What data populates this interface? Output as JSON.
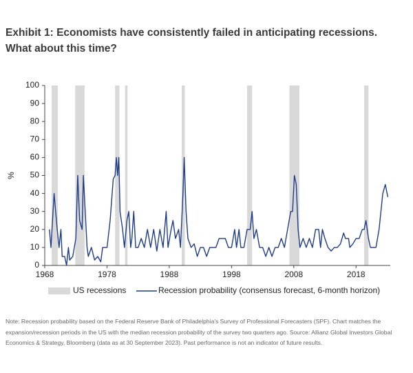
{
  "chart_data": {
    "type": "line",
    "title": "Exhibit 1: Economists have consistently failed in anticipating recessions. What about this time?",
    "y_label": "%",
    "xlim": [
      1968,
      2023.5
    ],
    "ylim": [
      0,
      100
    ],
    "xticks": [
      1968,
      1978,
      1988,
      1998,
      2008,
      2018
    ],
    "yticks": [
      0,
      10,
      20,
      30,
      40,
      50,
      60,
      70,
      80,
      90,
      100
    ],
    "recessions": {
      "name": "US recessions",
      "color": "#d9d9d9",
      "periods": [
        [
          1969.1,
          1970.1
        ],
        [
          1972.9,
          1974.4
        ],
        [
          1979.3,
          1980.0
        ],
        [
          1980.9,
          1981.3
        ],
        [
          1990.0,
          1990.5
        ],
        [
          2000.5,
          2001.3
        ],
        [
          2007.3,
          2008.9
        ],
        [
          2019.3,
          2020.0
        ]
      ]
    },
    "x": [
      1968.75,
      1969,
      1969.5,
      1970,
      1970.3,
      1970.6,
      1970.8,
      1971.2,
      1971.5,
      1971.8,
      1972,
      1972.5,
      1973,
      1973.3,
      1973.6,
      1974,
      1974.2,
      1974.5,
      1974.8,
      1975,
      1975.5,
      1976,
      1976.5,
      1977,
      1977.3,
      1978,
      1978.5,
      1979,
      1979.3,
      1979.5,
      1979.7,
      1979.9,
      1980.1,
      1980.5,
      1980.8,
      1981.2,
      1981.5,
      1981.8,
      1982,
      1982.3,
      1982.6,
      1983,
      1983.5,
      1984,
      1984.5,
      1985,
      1985.5,
      1986,
      1986.5,
      1987,
      1987.5,
      1987.8,
      1988.3,
      1988.6,
      1989,
      1989.5,
      1989.8,
      1990.2,
      1990.4,
      1990.7,
      1991,
      1991.5,
      1992,
      1992.5,
      1993,
      1993.5,
      1994,
      1994.5,
      1995,
      1995.5,
      1996,
      1997,
      1997.5,
      1998,
      1998.5,
      1998.8,
      1999.2,
      1999.5,
      2000,
      2000.5,
      2001,
      2001.3,
      2001.6,
      2002,
      2002.5,
      2003,
      2003.5,
      2004,
      2004.5,
      2005,
      2005.5,
      2006,
      2006.5,
      2007,
      2007.5,
      2007.8,
      2008.1,
      2008.4,
      2008.7,
      2009,
      2009.5,
      2010,
      2010.5,
      2011,
      2011.5,
      2012,
      2012.3,
      2012.6,
      2013,
      2013.5,
      2014,
      2014.5,
      2015,
      2015.5,
      2016,
      2016.3,
      2016.8,
      2017,
      2017.5,
      2018,
      2018.5,
      2019,
      2019.3,
      2019.6,
      2020,
      2020.3,
      2021.2,
      2021.7,
      2022.3,
      2022.7,
      2023.1
    ],
    "series": [
      {
        "name": "Recession probability (consensus forecast, 6-month horizon)",
        "color": "#1f3c88",
        "values": [
          20,
          10,
          40,
          20,
          10,
          20,
          5,
          5,
          0,
          10,
          3,
          5,
          15,
          50,
          25,
          20,
          50,
          30,
          10,
          5,
          10,
          3,
          5,
          2,
          10,
          10,
          25,
          48,
          50,
          60,
          50,
          60,
          30,
          20,
          10,
          25,
          30,
          10,
          15,
          30,
          10,
          10,
          15,
          10,
          20,
          10,
          20,
          8,
          20,
          10,
          30,
          10,
          20,
          25,
          15,
          20,
          10,
          40,
          60,
          30,
          15,
          10,
          12,
          5,
          10,
          10,
          5,
          10,
          10,
          10,
          15,
          15,
          10,
          10,
          20,
          10,
          20,
          10,
          10,
          20,
          20,
          30,
          15,
          20,
          10,
          10,
          5,
          10,
          5,
          10,
          10,
          15,
          10,
          20,
          30,
          30,
          50,
          45,
          20,
          10,
          15,
          10,
          15,
          10,
          20,
          20,
          10,
          20,
          15,
          10,
          8,
          10,
          10,
          12,
          18,
          15,
          15,
          10,
          12,
          15,
          15,
          20,
          20,
          25,
          15,
          10,
          10,
          20,
          40,
          45,
          38
        ]
      }
    ]
  },
  "note": "Note: Recession probability based on the Federal Reserve Bank of Philadelphia's Survey of Professional Forecasters (SPF). Chart matches the expansion/recession periods in the US with the median recession probability of the survey two quarters ago. Source: Allianz Global Investors Global Economics & Strategy, Bloomberg (data as at 30 September 2023). Past performance is not an indicator of future results."
}
